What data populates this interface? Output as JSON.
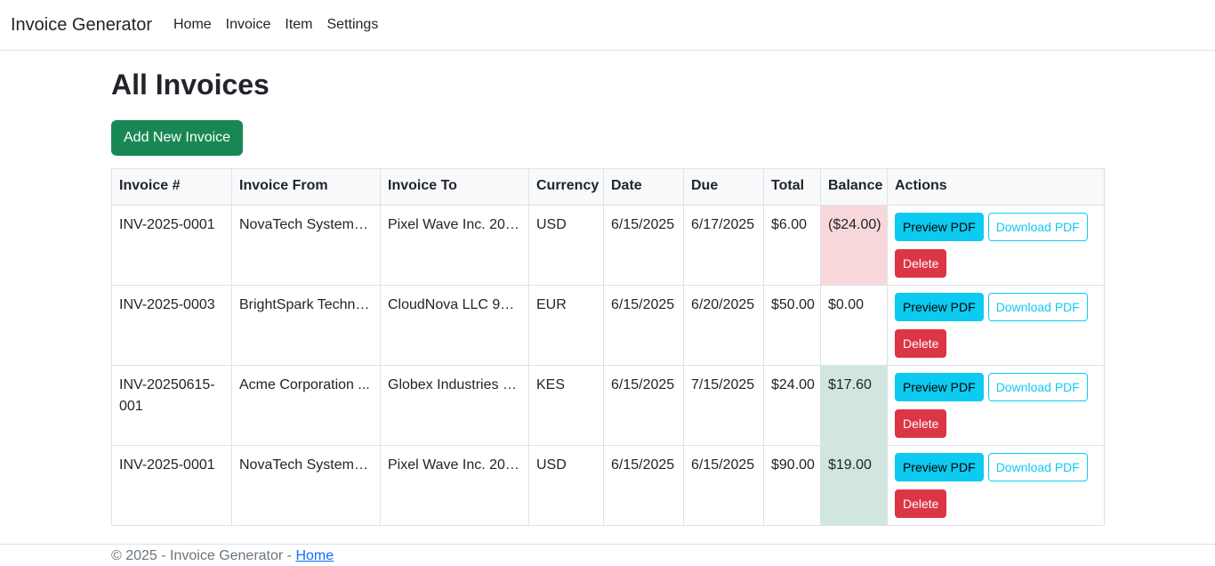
{
  "navbar": {
    "brand": "Invoice Generator",
    "links": [
      "Home",
      "Invoice",
      "Item",
      "Settings"
    ]
  },
  "page": {
    "title": "All Invoices",
    "add_button": "Add New Invoice"
  },
  "table": {
    "columns": [
      "Invoice #",
      "Invoice From",
      "Invoice To",
      "Currency",
      "Date",
      "Due",
      "Total",
      "Balance",
      "Actions"
    ],
    "rows": [
      {
        "number": "INV-2025-0001",
        "from": "NovaTech Systems ...",
        "to": "Pixel Wave Inc. 200...",
        "currency": "USD",
        "date": "6/15/2025",
        "due": "6/17/2025",
        "total": "$6.00",
        "balance": "($24.00)",
        "balance_state": "negative"
      },
      {
        "number": "INV-2025-0003",
        "from": "BrightSpark Techno...",
        "to": "CloudNova LLC 90 ...",
        "currency": "EUR",
        "date": "6/15/2025",
        "due": "6/20/2025",
        "total": "$50.00",
        "balance": "$0.00",
        "balance_state": "neutral"
      },
      {
        "number": "INV-20250615-001",
        "from": "Acme Corporation ...",
        "to": "Globex Industries 7...",
        "currency": "KES",
        "date": "6/15/2025",
        "due": "7/15/2025",
        "total": "$24.00",
        "balance": "$17.60",
        "balance_state": "positive"
      },
      {
        "number": "INV-2025-0001",
        "from": "NovaTech Systems ...",
        "to": "Pixel Wave Inc. 200...",
        "currency": "USD",
        "date": "6/15/2025",
        "due": "6/15/2025",
        "total": "$90.00",
        "balance": "$19.00",
        "balance_state": "positive"
      }
    ],
    "actions": {
      "preview": "Preview PDF",
      "download": "Download PDF",
      "delete": "Delete"
    }
  },
  "footer": {
    "text": "© 2025 - Invoice Generator - ",
    "link": "Home"
  },
  "colors": {
    "primary_success": "#198754",
    "info": "#0dcaf0",
    "danger": "#dc3545",
    "balance_negative_bg": "#f8d7da",
    "balance_positive_bg": "#d1e7dd",
    "link": "#0d6efd"
  }
}
